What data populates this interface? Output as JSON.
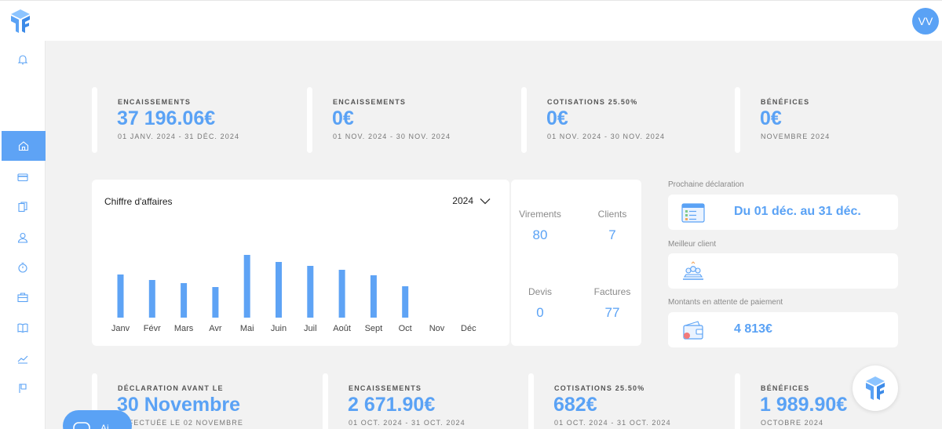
{
  "header": {
    "avatar_initials": "VV"
  },
  "sidebar": {
    "items": [
      {
        "icon": "bell-icon"
      },
      {
        "icon": "home-icon",
        "active": true
      },
      {
        "icon": "card-icon"
      },
      {
        "icon": "documents-icon"
      },
      {
        "icon": "user-icon"
      },
      {
        "icon": "timer-icon"
      },
      {
        "icon": "briefcase-icon"
      },
      {
        "icon": "book-icon"
      },
      {
        "icon": "chart-icon"
      },
      {
        "icon": "flag-icon"
      }
    ]
  },
  "kpis_top": [
    {
      "title": "ENCAISSEMENTS",
      "value": "37 196.06€",
      "period": "01 JANV. 2024 - 31 DÉC. 2024"
    },
    {
      "title": "ENCAISSEMENTS",
      "value": "0€",
      "period": "01 NOV. 2024 - 30 NOV. 2024"
    },
    {
      "title": "COTISATIONS 25.50%",
      "value": "0€",
      "period": "01 NOV. 2024 - 30 NOV. 2024"
    },
    {
      "title": "BÉNÉFICES",
      "value": "0€",
      "period": "NOVEMBRE 2024"
    }
  ],
  "chart_card": {
    "title": "Chiffre d'affaires",
    "year": "2024"
  },
  "chart_data": {
    "type": "bar",
    "categories": [
      "Janv",
      "Févr",
      "Mars",
      "Avr",
      "Mai",
      "Juin",
      "Juil",
      "Août",
      "Sept",
      "Oct",
      "Nov",
      "Déc"
    ],
    "values": [
      55,
      48,
      44,
      39,
      80,
      71,
      66,
      61,
      54,
      40,
      0,
      0
    ],
    "ylim": [
      0,
      100
    ],
    "grid": false,
    "color": "#5ea3f5"
  },
  "stats": [
    {
      "label": "Virements",
      "value": "80"
    },
    {
      "label": "Clients",
      "value": "7"
    },
    {
      "label": "Devis",
      "value": "0"
    },
    {
      "label": "Factures",
      "value": "77"
    }
  ],
  "right_panel": {
    "next_declaration": {
      "label": "Prochaine déclaration",
      "value": "Du 01 déc. au 31 déc."
    },
    "best_client": {
      "label": "Meilleur client",
      "value": ""
    },
    "pending_payments": {
      "label": "Montants en attente de paiement",
      "value": "4 813€"
    }
  },
  "kpis_bottom": [
    {
      "title": "DÉCLARATION AVANT LE",
      "value": "30 Novembre",
      "period": "EFFECTUÉE LE 02 NOVEMBRE"
    },
    {
      "title": "ENCAISSEMENTS",
      "value": "2 671.90€",
      "period": "01 OCT. 2024 - 31 OCT. 2024"
    },
    {
      "title": "COTISATIONS 25.50%",
      "value": "682€",
      "period": "01 OCT. 2024 - 31 OCT. 2024"
    },
    {
      "title": "BÉNÉFICES",
      "value": "1 989.90€",
      "period": "OCTOBRE 2024"
    }
  ],
  "chat_button": {
    "label": "Ai"
  },
  "colors": {
    "accent": "#5aa2f5",
    "background": "#f2f2f2"
  }
}
